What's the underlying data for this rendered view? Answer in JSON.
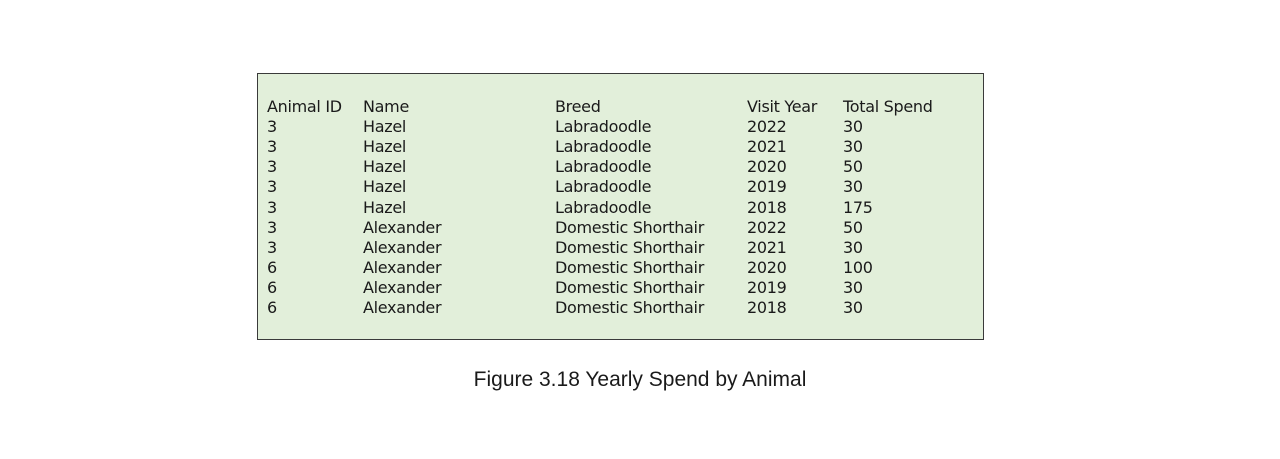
{
  "table": {
    "headers": [
      "Animal ID",
      "Name",
      "Breed",
      "Visit Year",
      "Total Spend"
    ],
    "rows": [
      [
        "3",
        "Hazel",
        "Labradoodle",
        "2022",
        "30"
      ],
      [
        "3",
        "Hazel",
        "Labradoodle",
        "2021",
        "30"
      ],
      [
        "3",
        "Hazel",
        "Labradoodle",
        "2020",
        "50"
      ],
      [
        "3",
        "Hazel",
        "Labradoodle",
        "2019",
        "30"
      ],
      [
        "3",
        "Hazel",
        "Labradoodle",
        "2018",
        "175"
      ],
      [
        "3",
        "Alexander",
        "Domestic Shorthair",
        "2022",
        "50"
      ],
      [
        "3",
        "Alexander",
        "Domestic Shorthair",
        "2021",
        "30"
      ],
      [
        "6",
        "Alexander",
        "Domestic Shorthair",
        "2020",
        "100"
      ],
      [
        "6",
        "Alexander",
        "Domestic Shorthair",
        "2019",
        "30"
      ],
      [
        "6",
        "Alexander",
        "Domestic Shorthair",
        "2018",
        "30"
      ]
    ]
  },
  "caption": "Figure 3.18 Yearly Spend by Animal",
  "colors": {
    "table_background": "#e2efda",
    "border": "#3a3a3a",
    "text": "#1a1a1a"
  }
}
